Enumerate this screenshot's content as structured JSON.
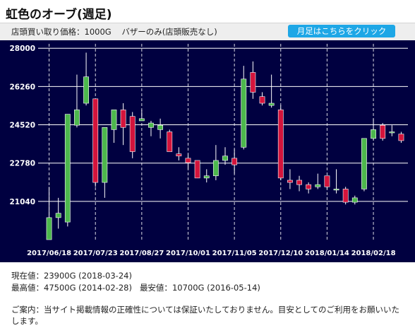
{
  "title": "虹色のオーブ(週足)",
  "info": {
    "buy_price_label": "店頭買い取り価格：1000G",
    "bazaar_only_label": "バザーのみ(店頭販売なし)"
  },
  "monthly_button_label": "月足はこちらをクリック",
  "stats": {
    "current_label": "現在値：",
    "current_value": "23900G (2018-03-24)",
    "high_label": "最高値：",
    "high_value": "47500G (2014-02-28)",
    "low_label": "最安値：",
    "low_value": "10700G (2016-05-14)"
  },
  "notice": "ご案内：当サイト掲載情報の正確性については保証いたしておりません。目安としてのご利用をお願いいたします。",
  "colors": {
    "background": "#000040",
    "up": "#4db84d",
    "down": "#d4143c",
    "axis_text": "#ffffff",
    "grid": "#ffffff",
    "button": "#1ea7e6"
  },
  "chart_data": {
    "type": "candlestick",
    "title": "",
    "xlabel": "",
    "ylabel": "",
    "ylim": [
      19300,
      28200
    ],
    "yticks": [
      21040,
      22780,
      24520,
      26260,
      28000
    ],
    "xtick_labels": [
      "2017/06/18",
      "2017/07/23",
      "2017/08/27",
      "2017/10/01",
      "2017/11/05",
      "2017/12/10",
      "2018/01/14",
      "2018/02/18"
    ],
    "xtick_indices": [
      0,
      5,
      10,
      15,
      20,
      25,
      30,
      35
    ],
    "grid": true,
    "candles": [
      {
        "open": 19300,
        "close": 20300,
        "high": 21700,
        "low": 19300
      },
      {
        "open": 20300,
        "close": 20500,
        "high": 21200,
        "low": 19800
      },
      {
        "open": 20100,
        "close": 25000,
        "high": 25000,
        "low": 19900
      },
      {
        "open": 24500,
        "close": 25200,
        "high": 26800,
        "low": 24400
      },
      {
        "open": 25500,
        "close": 26700,
        "high": 27800,
        "low": 25400
      },
      {
        "open": 25700,
        "close": 21900,
        "high": 25700,
        "low": 21700
      },
      {
        "open": 21900,
        "close": 24400,
        "high": 24400,
        "low": 21200
      },
      {
        "open": 24300,
        "close": 25200,
        "high": 25200,
        "low": 23700
      },
      {
        "open": 25200,
        "close": 24400,
        "high": 25500,
        "low": 23600
      },
      {
        "open": 24900,
        "close": 23300,
        "high": 25100,
        "low": 23000
      },
      {
        "open": 24700,
        "close": 24800,
        "high": 25200,
        "low": 24700
      },
      {
        "open": 24400,
        "close": 24600,
        "high": 24700,
        "low": 24000
      },
      {
        "open": 24300,
        "close": 24500,
        "high": 24800,
        "low": 23900
      },
      {
        "open": 24200,
        "close": 23300,
        "high": 24300,
        "low": 23300
      },
      {
        "open": 23200,
        "close": 23100,
        "high": 23500,
        "low": 22900
      },
      {
        "open": 23000,
        "close": 22800,
        "high": 23200,
        "low": 22500
      },
      {
        "open": 22900,
        "close": 22100,
        "high": 22900,
        "low": 22100
      },
      {
        "open": 22100,
        "close": 22200,
        "high": 22500,
        "low": 21900
      },
      {
        "open": 22200,
        "close": 22900,
        "high": 23600,
        "low": 22000
      },
      {
        "open": 22900,
        "close": 23100,
        "high": 23500,
        "low": 22700
      },
      {
        "open": 23000,
        "close": 22700,
        "high": 23400,
        "low": 22300
      },
      {
        "open": 23500,
        "close": 26600,
        "high": 27200,
        "low": 23400
      },
      {
        "open": 26900,
        "close": 26000,
        "high": 27400,
        "low": 25700
      },
      {
        "open": 25800,
        "close": 25500,
        "high": 26000,
        "low": 25400
      },
      {
        "open": 25400,
        "close": 25500,
        "high": 26800,
        "low": 25300
      },
      {
        "open": 25200,
        "close": 22100,
        "high": 25400,
        "low": 22000
      },
      {
        "open": 22000,
        "close": 21900,
        "high": 22500,
        "low": 21600
      },
      {
        "open": 22000,
        "close": 21800,
        "high": 22200,
        "low": 21500
      },
      {
        "open": 21800,
        "close": 21600,
        "high": 21900,
        "low": 21400
      },
      {
        "open": 21700,
        "close": 21800,
        "high": 22300,
        "low": 21600
      },
      {
        "open": 22200,
        "close": 21700,
        "high": 22200,
        "low": 21600
      },
      {
        "open": 21600,
        "close": 21600,
        "high": 22500,
        "low": 21400
      },
      {
        "open": 21600,
        "close": 21000,
        "high": 21700,
        "low": 20900
      },
      {
        "open": 21000,
        "close": 21200,
        "high": 21300,
        "low": 20900
      },
      {
        "open": 21600,
        "close": 23900,
        "high": 23900,
        "low": 21500
      },
      {
        "open": 23900,
        "close": 24300,
        "high": 24800,
        "low": 23800
      },
      {
        "open": 24500,
        "close": 23900,
        "high": 24600,
        "low": 23800
      },
      {
        "open": 24200,
        "close": 24200,
        "high": 24500,
        "low": 24000
      },
      {
        "open": 24100,
        "close": 23800,
        "high": 24200,
        "low": 23700
      }
    ]
  }
}
